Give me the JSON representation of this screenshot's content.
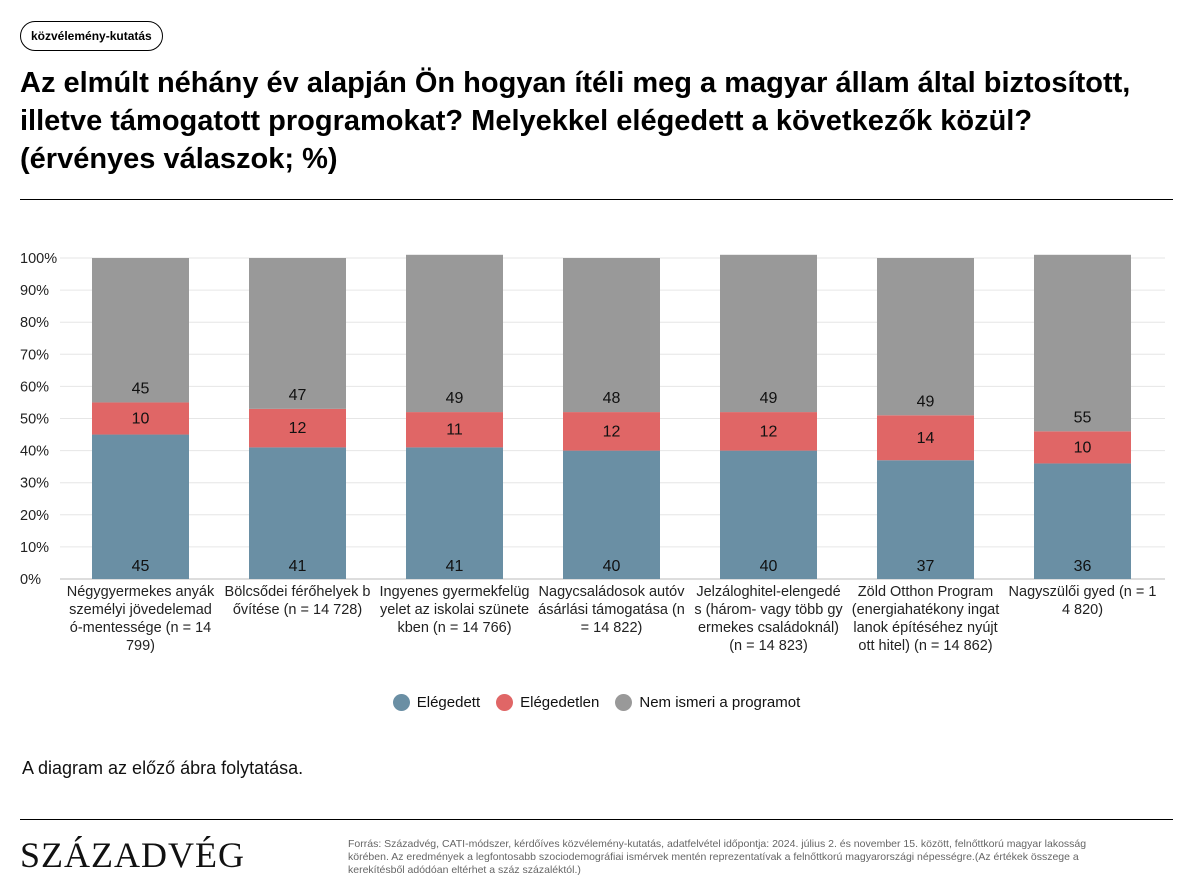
{
  "badge": "közvélemény-kutatás",
  "title": "Az elmúlt néhány év alapján Ön hogyan ítéli meg a magyar állam által biztosított, illetve támogatott programokat? Melyekkel elégedett a következők közül? (érvényes válaszok; %)",
  "note": "A diagram az előző ábra folytatása.",
  "logo": "SZÁZADVÉG",
  "source": "Forrás: Századvég, CATI-módszer, kérdőíves közvélemény-kutatás, adatfelvétel időpontja: 2024. július 2. és november 15. között, felnőttkorú magyar lakosság körében. Az eredmények a legfontosabb szociodemográfiai ismérvek mentén reprezentatívak a felnőttkorú magyarországi népességre.(Az értékek összege a kerekítésből adódóan eltérhet a száz százaléktól.)",
  "chart_data": {
    "type": "bar",
    "stacked": true,
    "categories": [
      "Négygyermekes anyák személyi jövedelemadó-mentessége (n = 14 799)",
      "Bölcsődei férőhelyek bővítése (n = 14 728)",
      "Ingyenes gyermekfelügyelet az iskolai szünetekben (n = 14 766)",
      "Nagycsaládosok autóvásárlási támogatása (n = 14 822)",
      "Jelzáloghitel-elengedés (három- vagy több gyermekes családoknál) (n = 14 823)",
      "Zöld Otthon Program (energiahatékony ingatlanok építéséhez nyújtott hitel) (n = 14 862)",
      "Nagyszülői gyed (n = 14 820)"
    ],
    "series": [
      {
        "name": "Elégedett",
        "color": "#6a8fa4",
        "values": [
          45,
          41,
          41,
          40,
          40,
          37,
          36
        ]
      },
      {
        "name": "Elégedetlen",
        "color": "#e06666",
        "values": [
          10,
          12,
          11,
          12,
          12,
          14,
          10
        ]
      },
      {
        "name": "Nem ismeri a programot",
        "color": "#999999",
        "values": [
          45,
          47,
          49,
          48,
          49,
          49,
          55
        ]
      }
    ],
    "yticks": [
      "0%",
      "10%",
      "20%",
      "30%",
      "40%",
      "50%",
      "60%",
      "70%",
      "80%",
      "90%",
      "100%"
    ],
    "ylim": [
      0,
      100
    ],
    "grid": true,
    "legend_position": "bottom"
  }
}
